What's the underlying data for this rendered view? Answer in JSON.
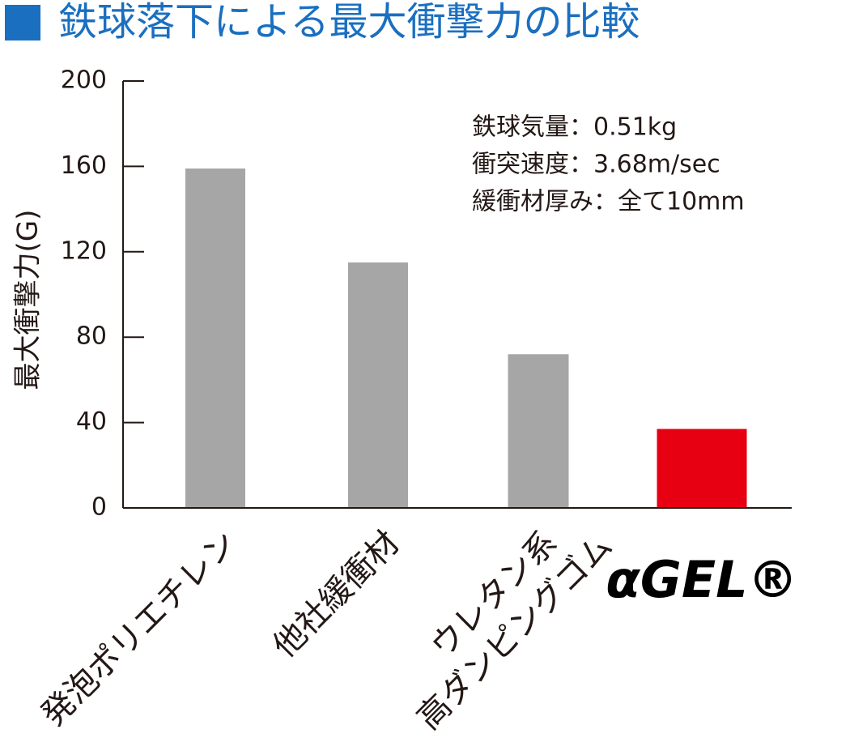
{
  "chart_data": {
    "type": "bar",
    "title": "鉄球落下による最大衝撃力の比較",
    "y_label": "最大衝撃力(G)",
    "annotations": [
      "鉄球気量：0.51kg",
      "衝突速度：3.68m/sec",
      "緩衝材厚み：全て10mm"
    ],
    "categories": [
      "発泡ポリエチレン",
      "他社緩衝材",
      [
        "ウレタン系",
        "高ダンピングゴム"
      ],
      "αGEL®"
    ],
    "values": [
      159,
      115,
      72,
      37
    ],
    "colors": [
      "#a6a6a6",
      "#a6a6a6",
      "#a6a6a6",
      "#e60012"
    ],
    "ylim": [
      0,
      200
    ],
    "yticks": [
      0,
      40,
      80,
      120,
      160,
      200
    ]
  }
}
